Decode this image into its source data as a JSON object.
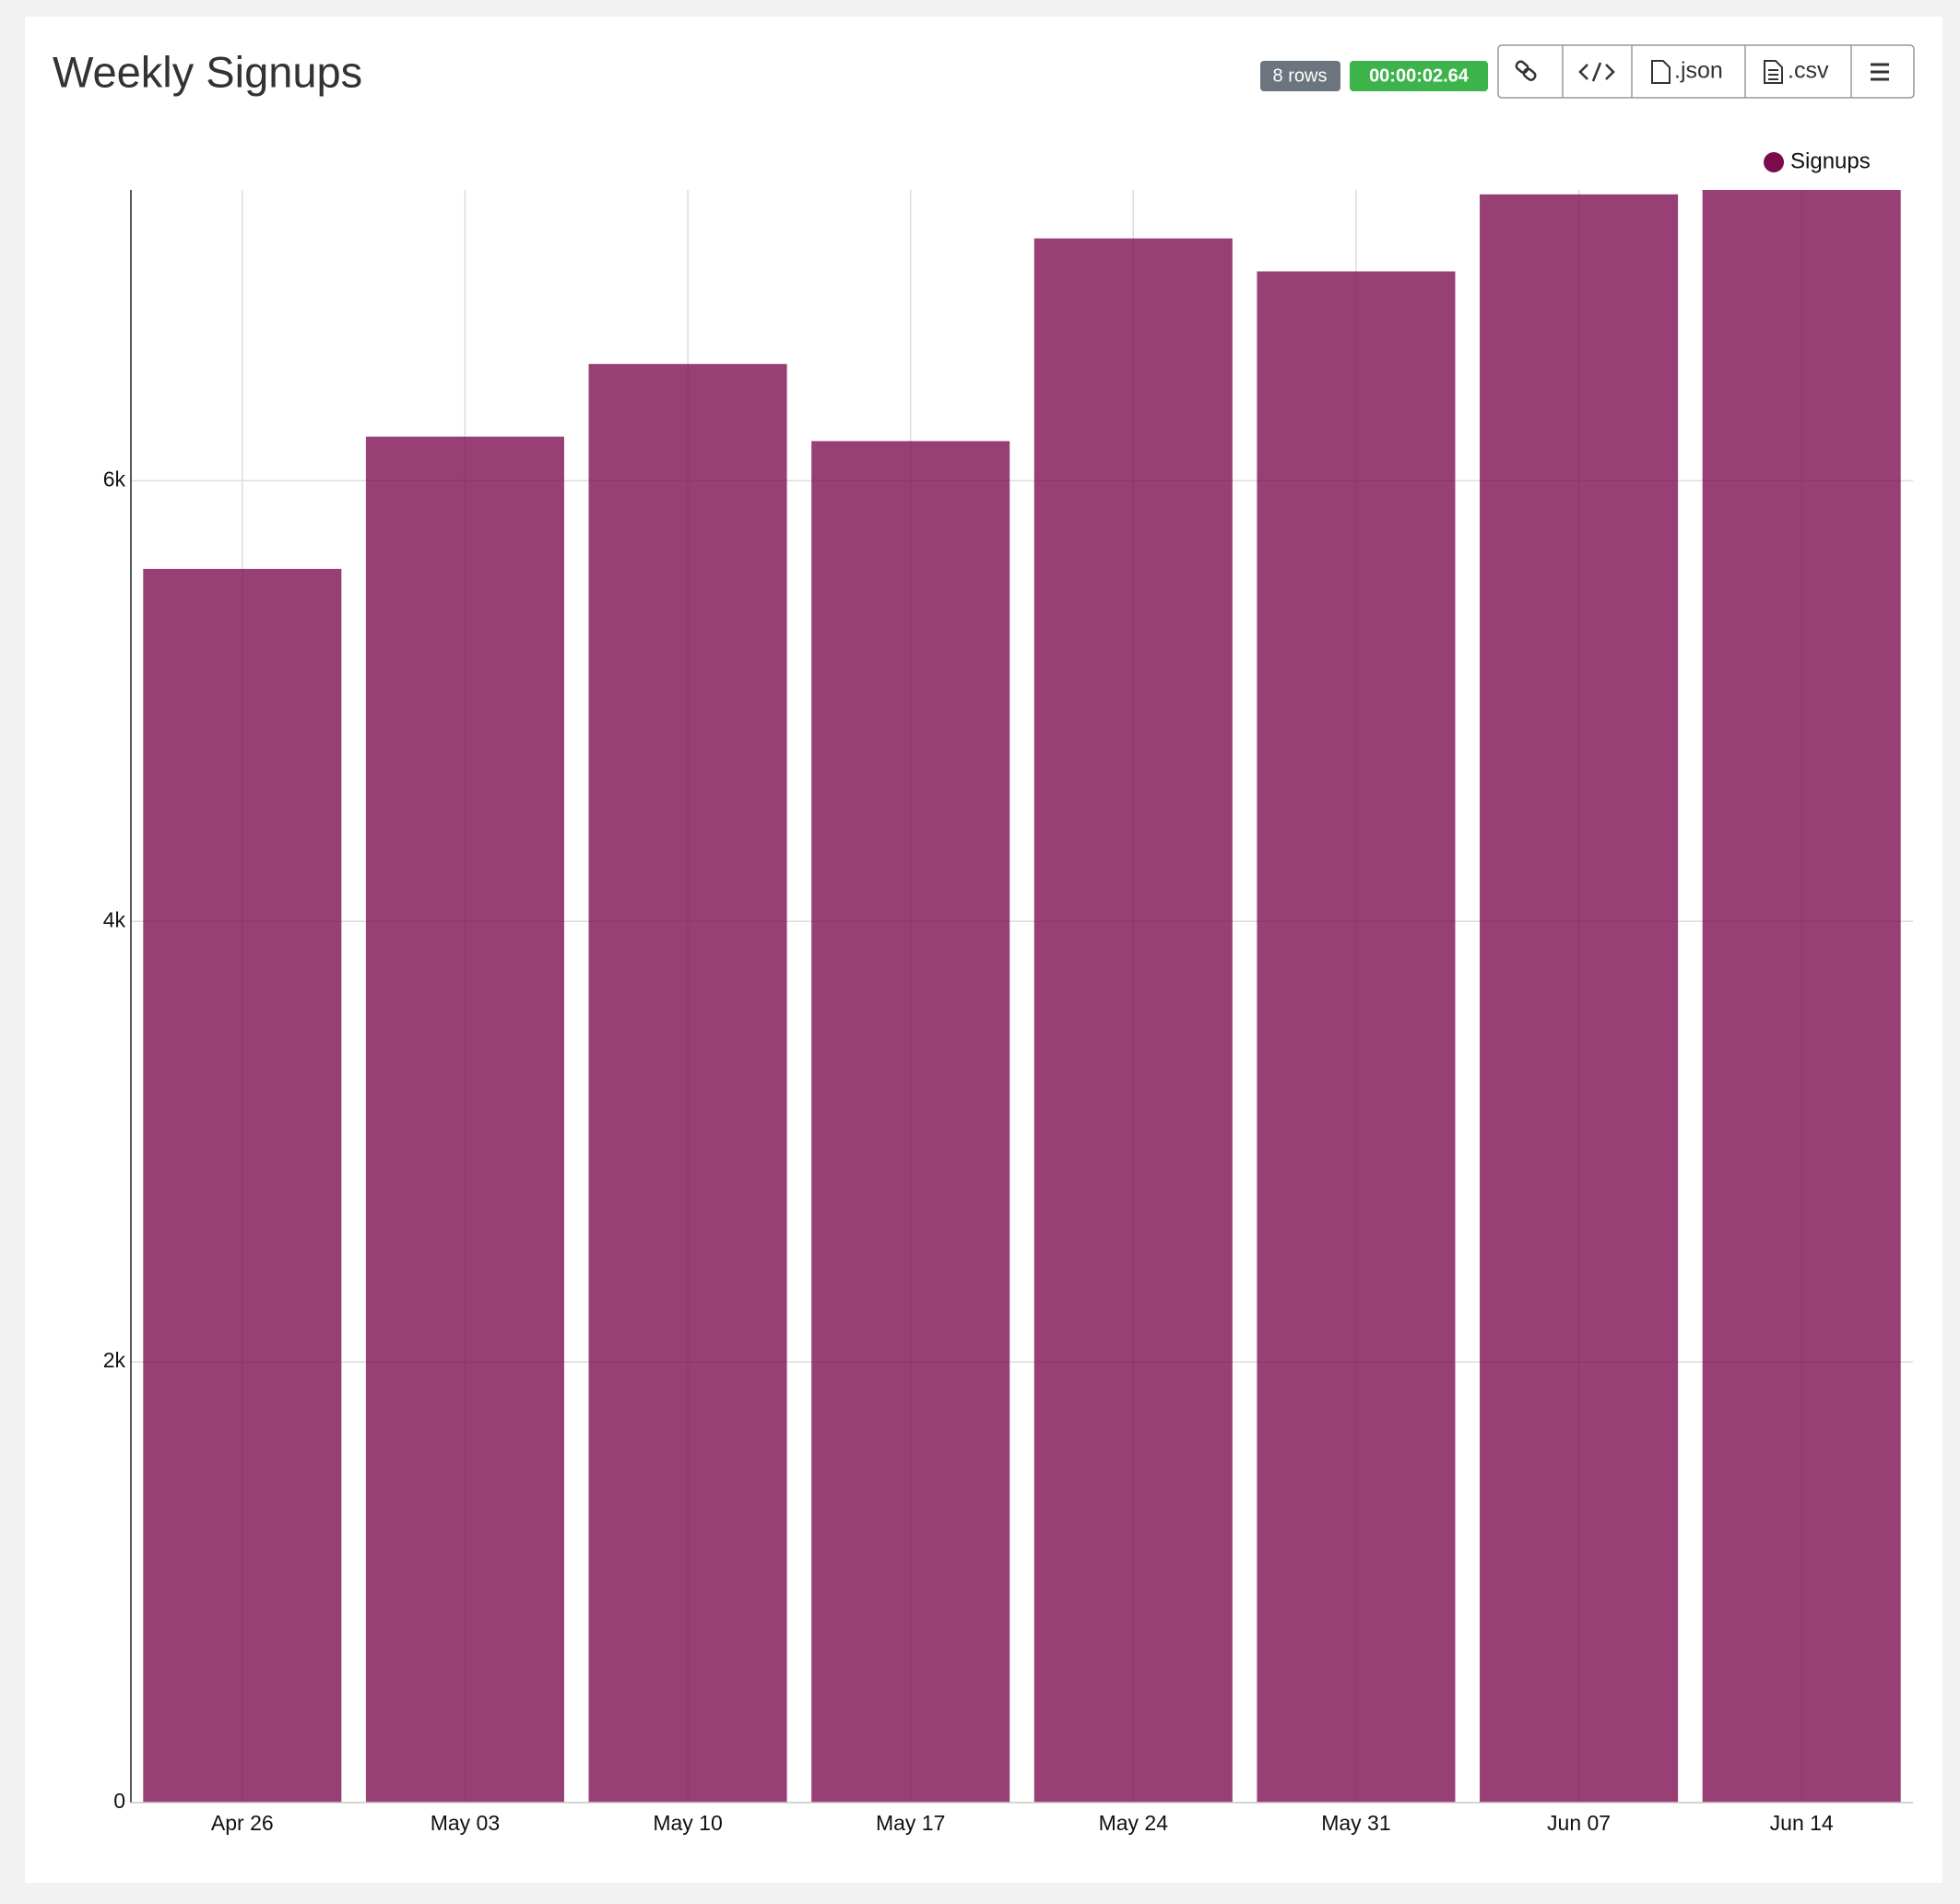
{
  "header": {
    "title": "Weekly Signups",
    "rows_badge": "8 rows",
    "time_badge": "00:00:02.64",
    "json_button": ".json",
    "csv_button": ".csv"
  },
  "chart_data": {
    "type": "bar",
    "categories": [
      "Apr 26",
      "May 03",
      "May 10",
      "May 17",
      "May 24",
      "May 31",
      "Jun 07",
      "Jun 14"
    ],
    "series": [
      {
        "name": "Signups",
        "color": "#7b0a4e",
        "values": [
          5600,
          6200,
          6530,
          6180,
          7100,
          6950,
          7300,
          7320
        ]
      }
    ],
    "ylim": [
      0,
      7320
    ],
    "yticks": [
      0,
      {
        "value": 2000,
        "label": "2k"
      },
      {
        "value": 4000,
        "label": "4k"
      },
      {
        "value": 6000,
        "label": "6k"
      }
    ],
    "grid": true,
    "legend": "top-right"
  }
}
